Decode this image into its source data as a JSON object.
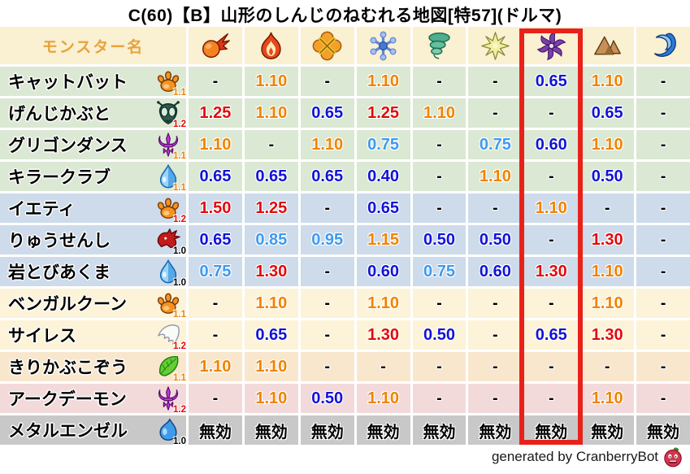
{
  "title": "C(60)【B】山形のしんじのねむれる地図[特57](ドルマ)",
  "footer": {
    "text": "generated by CranberryBot",
    "icon": "cranberry-icon"
  },
  "colors": {
    "highlight_box": "#E8221A",
    "value_strong_weakness": "#E20A0A",
    "value_weakness": "#F08300",
    "value_resist": "#3D9AF0",
    "value_strong_resist": "#1212D8",
    "header_bg": "#FAF0D2",
    "row_green": "#DBE8D3",
    "row_blue": "#CDDBEB",
    "row_yellow": "#FCF3D8",
    "row_peach": "#F9E7CD",
    "row_pink": "#F3DADA",
    "row_gray": "#C8C8C8",
    "name_header_text": "#E9A23B"
  },
  "chart_data": {
    "type": "table",
    "title": "C(60)【B】山形のしんじのねむれる地図[特57](ドルマ)",
    "name_header": "モンスター名",
    "column_icons": [
      "fireball-icon",
      "flame-icon",
      "bang-icon",
      "snowflake-icon",
      "tornado-icon",
      "star-icon",
      "pinwheel-icon",
      "mountain-icon",
      "wave-icon"
    ],
    "highlighted_column_index": 6,
    "rows": [
      {
        "name": "キャットバット",
        "family_icon": "paw-icon",
        "family_multiplier": "1.1",
        "row_group": "green",
        "values": [
          "-",
          "1.10",
          "-",
          "1.10",
          "-",
          "-",
          "0.65",
          "1.10",
          "-"
        ]
      },
      {
        "name": "げんじかぶと",
        "family_icon": "bug-icon",
        "family_multiplier": "1.2",
        "row_group": "green",
        "values": [
          "1.25",
          "1.10",
          "0.65",
          "1.25",
          "1.10",
          "-",
          "-",
          "0.65",
          "-"
        ]
      },
      {
        "name": "グリゴンダンス",
        "family_icon": "demon-icon",
        "family_multiplier": "1.1",
        "row_group": "green",
        "values": [
          "1.10",
          "-",
          "1.10",
          "0.75",
          "-",
          "0.75",
          "0.60",
          "1.10",
          "-"
        ]
      },
      {
        "name": "キラークラブ",
        "family_icon": "waterdrop-icon",
        "family_multiplier": "1.1",
        "row_group": "green",
        "values": [
          "0.65",
          "0.65",
          "0.65",
          "0.40",
          "-",
          "1.10",
          "-",
          "0.50",
          "-"
        ]
      },
      {
        "name": "イエティ",
        "family_icon": "paw-icon",
        "family_multiplier": "1.2",
        "row_group": "blue",
        "values": [
          "1.50",
          "1.25",
          "-",
          "0.65",
          "-",
          "-",
          "1.10",
          "-",
          "-"
        ]
      },
      {
        "name": "りゅうせんし",
        "family_icon": "dragon-icon",
        "family_multiplier": "1.0",
        "row_group": "blue",
        "values": [
          "0.65",
          "0.85",
          "0.95",
          "1.15",
          "0.50",
          "0.50",
          "-",
          "1.30",
          "-"
        ]
      },
      {
        "name": "岩とびあくま",
        "family_icon": "waterdrop-icon",
        "family_multiplier": "1.0",
        "row_group": "blue",
        "values": [
          "0.75",
          "1.30",
          "-",
          "0.60",
          "0.75",
          "0.60",
          "1.30",
          "1.10",
          "-"
        ]
      },
      {
        "name": "ベンガルクーン",
        "family_icon": "paw-icon",
        "family_multiplier": "1.1",
        "row_group": "yellow",
        "values": [
          "-",
          "1.10",
          "-",
          "1.10",
          "-",
          "-",
          "-",
          "1.10",
          "-"
        ]
      },
      {
        "name": "サイレス",
        "family_icon": "wing-icon",
        "family_multiplier": "1.2",
        "row_group": "yellow",
        "values": [
          "-",
          "0.65",
          "-",
          "1.30",
          "0.50",
          "-",
          "0.65",
          "1.30",
          "-"
        ]
      },
      {
        "name": "きりかぶこぞう",
        "family_icon": "leaf-icon",
        "family_multiplier": "1.1",
        "row_group": "peach",
        "values": [
          "1.10",
          "1.10",
          "-",
          "-",
          "-",
          "-",
          "-",
          "-",
          "-"
        ]
      },
      {
        "name": "アークデーモン",
        "family_icon": "demon-icon",
        "family_multiplier": "1.2",
        "row_group": "pink",
        "values": [
          "-",
          "1.10",
          "0.50",
          "1.10",
          "-",
          "-",
          "-",
          "1.10",
          "-"
        ]
      },
      {
        "name": "メタルエンゼル",
        "family_icon": "slime-icon",
        "family_multiplier": "1.0",
        "row_group": "gray",
        "values": [
          "無効",
          "無効",
          "無効",
          "無効",
          "無効",
          "無効",
          "無効",
          "無効",
          "無効"
        ]
      }
    ]
  }
}
